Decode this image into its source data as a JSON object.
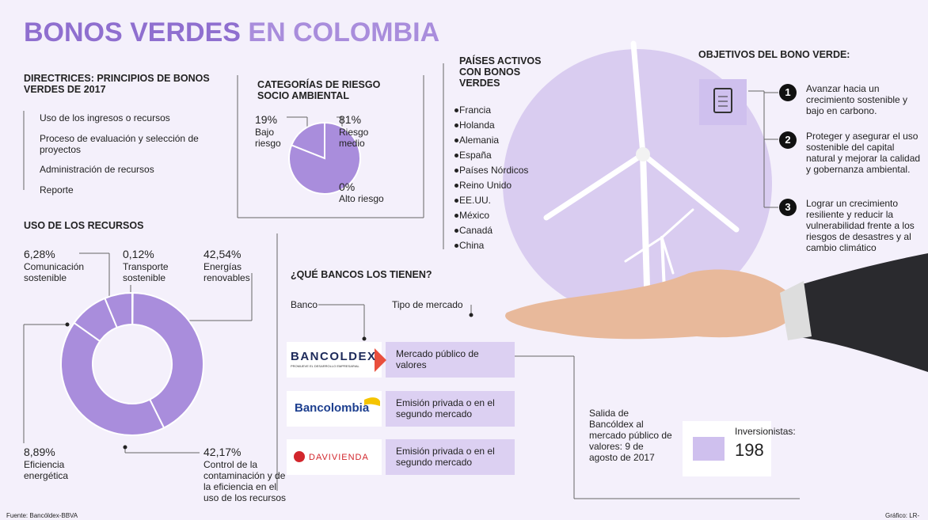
{
  "title_main": "BONOS VERDES",
  "title_rest": "EN COLOMBIA",
  "directrices": {
    "title": "DIRECTRICES: PRINCIPIOS DE BONOS VERDES DE 2017",
    "items": [
      "Uso de los ingresos o recursos",
      "Proceso de evaluación y selección de proyectos",
      "Administración de recursos",
      "Reporte"
    ]
  },
  "riesgo": {
    "title": "CATEGORÍAS DE RIESGO SOCIO AMBIENTAL",
    "labels": [
      "Bajo riesgo",
      "Riesgo medio",
      "Alto riesgo"
    ],
    "values": [
      19,
      81,
      0
    ],
    "value_labels": [
      "19%",
      "81%",
      "0%"
    ]
  },
  "uso": {
    "title": "USO DE LOS RECURSOS",
    "labels": [
      "Transporte sostenible",
      "Energías renovables",
      "Control de la contaminación y de la eficiencia en el uso de los recursos",
      "Eficiencia energética",
      "Comunicación sostenible"
    ],
    "values": [
      0.12,
      42.54,
      42.17,
      8.89,
      6.28
    ],
    "value_labels": [
      "0,12%",
      "42,54%",
      "42,17%",
      "8,89%",
      "6,28%"
    ]
  },
  "paises": {
    "title": "PAÍSES ACTIVOS CON BONOS VERDES",
    "items": [
      "Francia",
      "Holanda",
      "Alemania",
      "España",
      "Países Nórdicos",
      "Reino Unido",
      "EE.UU.",
      "México",
      "Canadá",
      "China"
    ]
  },
  "objetivos": {
    "title": "OBJETIVOS DEL BONO VERDE:",
    "items": [
      {
        "number": 1,
        "text": "Avanzar hacia un crecimiento sostenible y bajo en carbono."
      },
      {
        "number": 2,
        "text": "Proteger y asegurar el uso sostenible del capital natural y mejorar la calidad y gobernanza ambiental."
      },
      {
        "number": 3,
        "text": "Lograr un crecimiento resiliente y reducir la vulnerabilidad frente a los riesgos de desastres y al cambio climático"
      }
    ]
  },
  "bancos": {
    "title": "¿QUÉ BANCOS LOS TIENEN?",
    "col_banco": "Banco",
    "col_tipo": "Tipo de mercado",
    "rows": [
      {
        "bank": "BANCOLDEX",
        "tagline": "PROMUEVE EL DESARROLLO EMPRESARIAL",
        "type": "Mercado público de valores"
      },
      {
        "bank": "Bancolombia",
        "type": "Emisión privada o en el segundo mercado"
      },
      {
        "bank": "DAVIVIENDA",
        "type": "Emisión privada o en el segundo mercado"
      }
    ]
  },
  "salida": "Salida de Bancóldex al mercado público de valores: 9 de agosto de 2017",
  "inversionistas": {
    "label": "Inversionistas:",
    "value": 198
  },
  "fuente": "Fuente: Bancóldex-BBVA",
  "grafico": "Gráfico: LR-GR"
}
